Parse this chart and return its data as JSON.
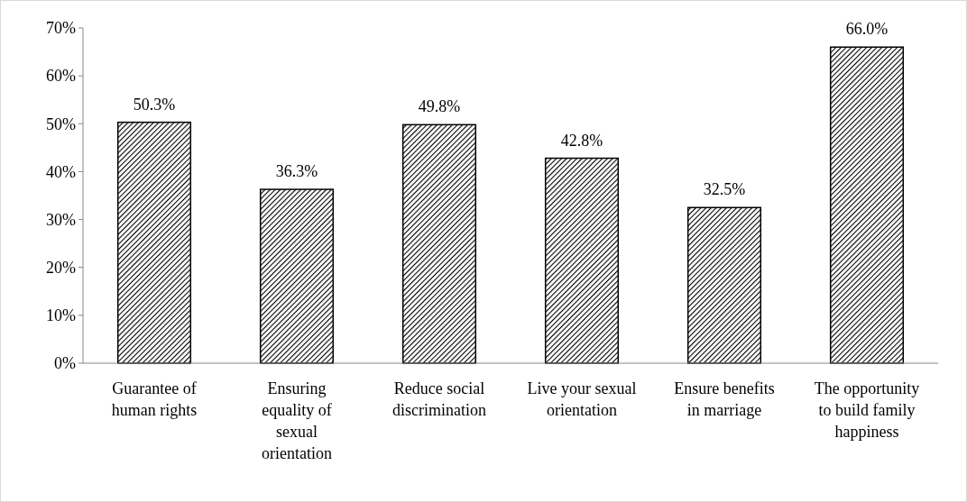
{
  "chart_data": {
    "type": "bar",
    "categories": [
      "Guarantee of human rights",
      "Ensuring equality of sexual orientation",
      "Reduce social discrimination",
      "Live your sexual orientation",
      "Ensure benefits in marriage",
      "The opportunity to build family happiness"
    ],
    "values": [
      50.3,
      36.3,
      49.8,
      42.8,
      32.5,
      66.0
    ],
    "value_labels": [
      "50.3%",
      "36.3%",
      "49.8%",
      "42.8%",
      "32.5%",
      "66.0%"
    ],
    "color": "#000000",
    "ylim": [
      0,
      70
    ],
    "yticks": [
      {
        "value": 0,
        "label": "0%"
      },
      {
        "value": 10,
        "label": "10%"
      },
      {
        "value": 20,
        "label": "20%"
      },
      {
        "value": 30,
        "label": "30%"
      },
      {
        "value": 40,
        "label": "40%"
      },
      {
        "value": 50,
        "label": "50%"
      },
      {
        "value": 60,
        "label": "60%"
      },
      {
        "value": 70,
        "label": "70%"
      }
    ],
    "grid": false
  }
}
